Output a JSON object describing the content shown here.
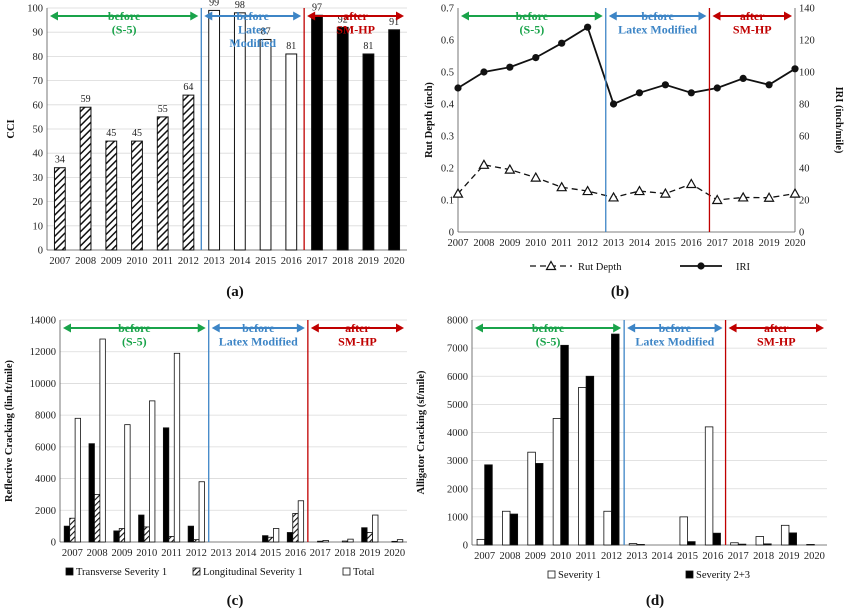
{
  "colors": {
    "green": "#19a34a",
    "blue": "#3d85c6",
    "red": "#c00000",
    "black": "#111111"
  },
  "chart_data": [
    {
      "id": "a",
      "caption": "(a)",
      "type": "bar",
      "ylabel": "CCI",
      "ylim": [
        0,
        100
      ],
      "yticks": [
        0,
        10,
        20,
        30,
        40,
        50,
        60,
        70,
        80,
        90,
        100
      ],
      "categories": [
        "2007",
        "2008",
        "2009",
        "2010",
        "2011",
        "2012",
        "2013",
        "2014",
        "2015",
        "2016",
        "2017",
        "2018",
        "2019",
        "2020"
      ],
      "values": [
        34,
        59,
        45,
        45,
        55,
        64,
        99,
        98,
        87,
        81,
        97,
        92,
        81,
        91
      ],
      "data_labels": [
        "34",
        "59",
        "45",
        "45",
        "55",
        "64",
        "99",
        "98",
        "87",
        "81",
        "97",
        "92",
        "81",
        "91"
      ],
      "phases": [
        {
          "lines": [
            "before",
            "(S-5)"
          ],
          "color": "green"
        },
        {
          "lines": [
            "before",
            "Latex",
            "Modified"
          ],
          "color": "blue"
        },
        {
          "lines": [
            "after",
            "SM-HP"
          ],
          "color": "red"
        }
      ]
    },
    {
      "id": "b",
      "caption": "(b)",
      "type": "line",
      "ylabel": "Rut Depth (inch)",
      "ylabel2": "IRI (inch/mile)",
      "ylim": [
        0,
        0.7
      ],
      "yticks": [
        "0",
        "0.1",
        "0.2",
        "0.3",
        "0.4",
        "0.5",
        "0.6",
        "0.7"
      ],
      "y2lim": [
        0,
        140
      ],
      "y2ticks": [
        "0",
        "20",
        "40",
        "60",
        "80",
        "100",
        "120",
        "140"
      ],
      "categories": [
        "2007",
        "2008",
        "2009",
        "2010",
        "2011",
        "2012",
        "2013",
        "2014",
        "2015",
        "2016",
        "2017",
        "2018",
        "2019",
        "2020"
      ],
      "series": [
        {
          "name": "Rut Depth",
          "axis": "left",
          "values": [
            0.12,
            0.21,
            0.195,
            0.17,
            0.14,
            0.128,
            0.108,
            0.128,
            0.12,
            0.15,
            0.1,
            0.108,
            0.107,
            0.12
          ]
        },
        {
          "name": "IRI",
          "axis": "right",
          "values": [
            90,
            100,
            103,
            109,
            118,
            128,
            80,
            87,
            92,
            87,
            90,
            96,
            92,
            102
          ]
        }
      ],
      "phases": [
        {
          "lines": [
            "before",
            "(S-5)"
          ],
          "color": "green"
        },
        {
          "lines": [
            "before",
            "Latex Modified"
          ],
          "color": "blue"
        },
        {
          "lines": [
            "after",
            "SM-HP"
          ],
          "color": "red"
        }
      ]
    },
    {
      "id": "c",
      "caption": "(c)",
      "type": "bar",
      "ylabel": "Reflective Cracking (lin.ft/mile)",
      "ylim": [
        0,
        14000
      ],
      "yticks": [
        "0",
        "2000",
        "4000",
        "6000",
        "8000",
        "10000",
        "12000",
        "14000"
      ],
      "categories": [
        "2007",
        "2008",
        "2009",
        "2010",
        "2011",
        "2012",
        "2013",
        "2014",
        "2015",
        "2016",
        "2017",
        "2018",
        "2019",
        "2020"
      ],
      "series": [
        {
          "name": "Transverse Severity 1",
          "values": [
            1000,
            6200,
            700,
            1700,
            7200,
            1000,
            0,
            0,
            400,
            600,
            0,
            0,
            900,
            0
          ]
        },
        {
          "name": "Longitudinal Severity 1",
          "values": [
            1500,
            3000,
            850,
            950,
            350,
            150,
            0,
            0,
            300,
            1800,
            50,
            60,
            600,
            40
          ]
        },
        {
          "name": "Total",
          "values": [
            7800,
            12800,
            7400,
            8900,
            11900,
            3800,
            0,
            0,
            850,
            2600,
            100,
            180,
            1700,
            150
          ]
        }
      ],
      "phases": [
        {
          "lines": [
            "before",
            "(S-5)"
          ],
          "color": "green"
        },
        {
          "lines": [
            "before",
            "Latex Modified"
          ],
          "color": "blue"
        },
        {
          "lines": [
            "after",
            "SM-HP"
          ],
          "color": "red"
        }
      ]
    },
    {
      "id": "d",
      "caption": "(d)",
      "type": "bar",
      "ylabel": "Alligator Cracking (sf/mile)",
      "ylim": [
        0,
        8000
      ],
      "yticks": [
        "0",
        "1000",
        "2000",
        "3000",
        "4000",
        "5000",
        "6000",
        "7000",
        "8000"
      ],
      "categories": [
        "2007",
        "2008",
        "2009",
        "2010",
        "2011",
        "2012",
        "2013",
        "2014",
        "2015",
        "2016",
        "2017",
        "2018",
        "2019",
        "2020"
      ],
      "series": [
        {
          "name": "Severity 1",
          "values": [
            200,
            1200,
            3300,
            4500,
            5600,
            1200,
            50,
            0,
            1000,
            4200,
            80,
            300,
            700,
            20
          ]
        },
        {
          "name": "Severity 2+3",
          "values": [
            2850,
            1100,
            2900,
            7100,
            6000,
            7500,
            20,
            0,
            120,
            420,
            30,
            40,
            430,
            0
          ]
        }
      ],
      "phases": [
        {
          "lines": [
            "before",
            "(S-5)"
          ],
          "color": "green"
        },
        {
          "lines": [
            "before",
            "Latex Modified"
          ],
          "color": "blue"
        },
        {
          "lines": [
            "after",
            "SM-HP"
          ],
          "color": "red"
        }
      ]
    }
  ]
}
